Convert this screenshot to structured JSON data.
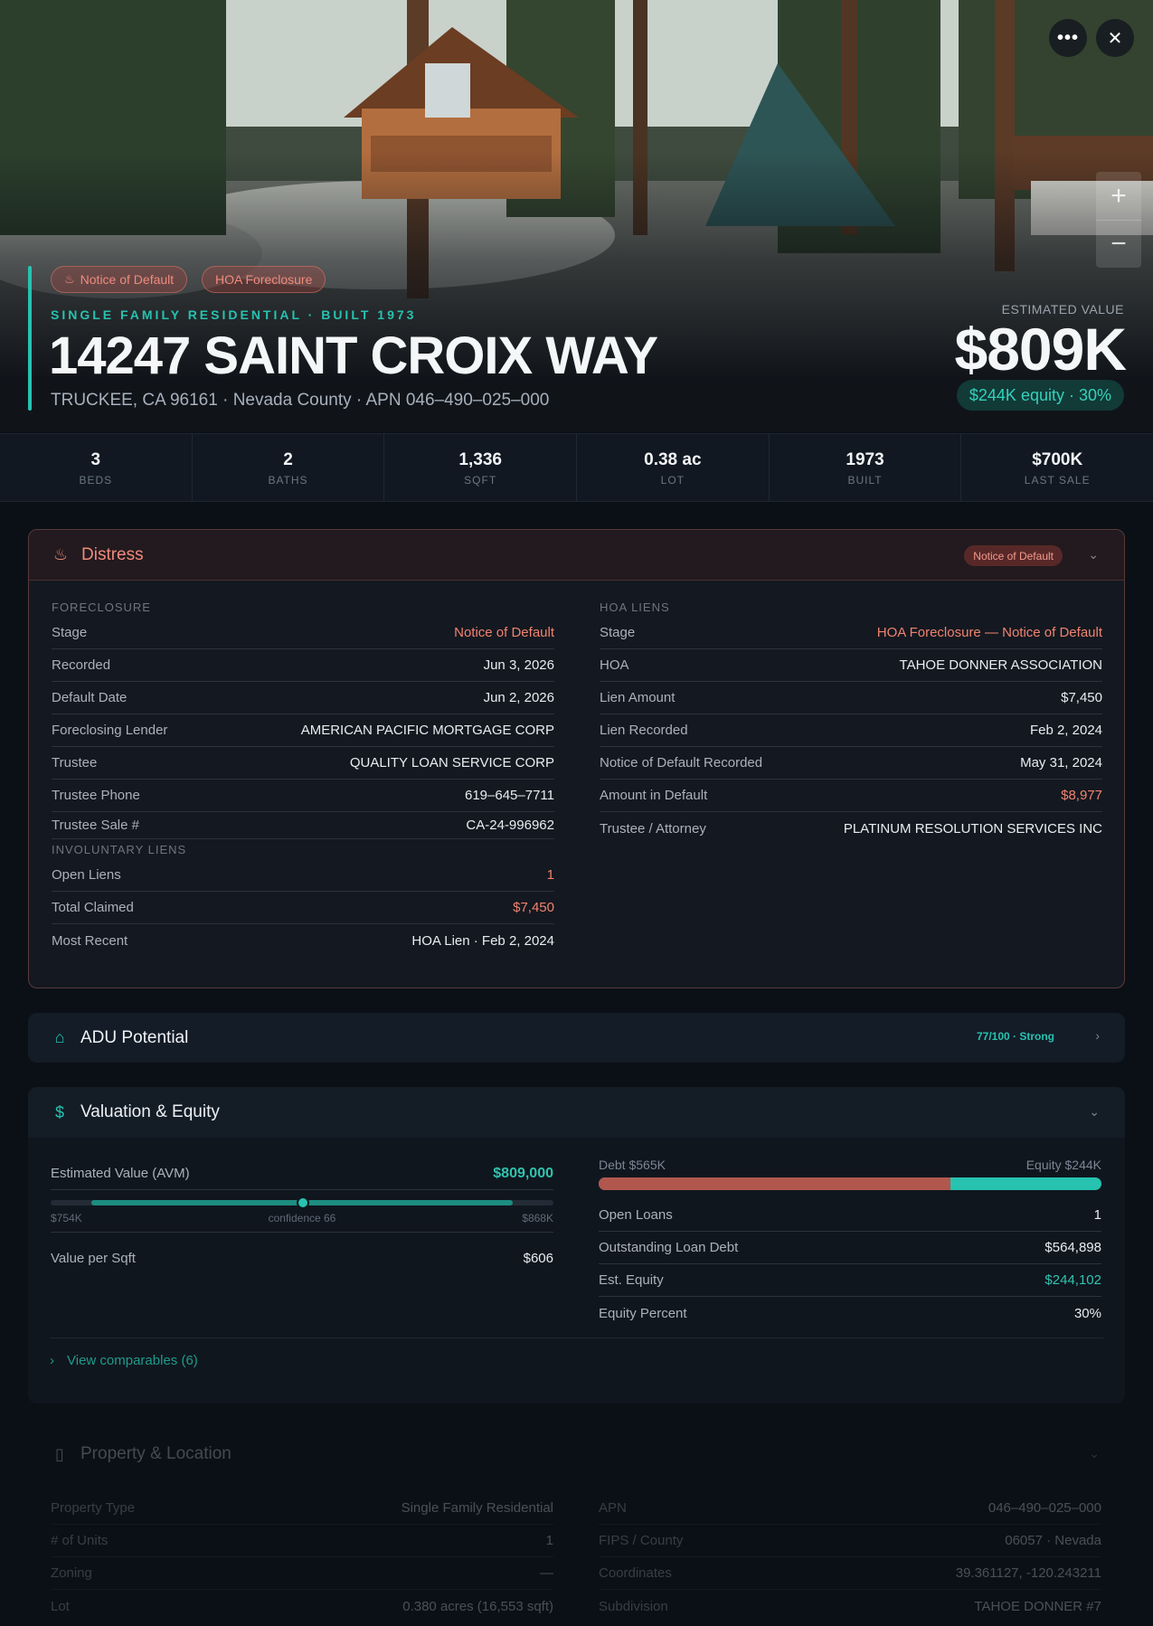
{
  "hero": {
    "badges": [
      "Notice of Default",
      "HOA Foreclosure"
    ],
    "subtitle": "SINGLE FAMILY RESIDENTIAL · BUILT 1973",
    "address": "14247 SAINT CROIX WAY",
    "location": "TRUCKEE, CA 96161 · Nevada County · APN 046–490–025–000",
    "estimated_value_label": "ESTIMATED VALUE",
    "estimated_value": "$809K",
    "equity_pill": "$244K equity · 30%",
    "more_icon": "more-icon",
    "close_icon": "close-icon",
    "zoom_in": "+",
    "zoom_out": "−"
  },
  "stats": [
    {
      "value": "3",
      "label": "BEDS"
    },
    {
      "value": "2",
      "label": "BATHS"
    },
    {
      "value": "1,336",
      "label": "SQFT"
    },
    {
      "value": "0.38 ac",
      "label": "LOT"
    },
    {
      "value": "1973",
      "label": "BUILT"
    },
    {
      "value": "$700K",
      "label": "LAST SALE"
    }
  ],
  "distress": {
    "title": "Distress",
    "badge": "Notice of Default",
    "foreclosure_label": "FORECLOSURE",
    "foreclosure": [
      {
        "k": "Stage",
        "v": "Notice of Default"
      },
      {
        "k": "Recorded",
        "v": "Jun 3, 2026"
      },
      {
        "k": "Default Date",
        "v": "Jun 2, 2026"
      },
      {
        "k": "Foreclosing Lender",
        "v": "AMERICAN PACIFIC MORTGAGE CORP"
      },
      {
        "k": "Trustee",
        "v": "QUALITY LOAN SERVICE CORP"
      },
      {
        "k": "Trustee Phone",
        "v": "619–645–7711"
      },
      {
        "k": "Trustee Sale #",
        "v": "CA-24-996962"
      }
    ],
    "involuntary_label": "INVOLUNTARY LIENS",
    "involuntary": [
      {
        "k": "Open Liens",
        "v": "1"
      },
      {
        "k": "Total Claimed",
        "v": "$7,450"
      },
      {
        "k": "Most Recent",
        "v": "HOA Lien · Feb 2, 2024"
      }
    ],
    "hoa_label": "HOA LIENS",
    "hoa": [
      {
        "k": "Stage",
        "v": "HOA Foreclosure — Notice of Default"
      },
      {
        "k": "HOA",
        "v": "TAHOE DONNER ASSOCIATION"
      },
      {
        "k": "Lien Amount",
        "v": "$7,450"
      },
      {
        "k": "Lien Recorded",
        "v": "Feb 2, 2024"
      },
      {
        "k": "Notice of Default Recorded",
        "v": "May 31, 2024"
      },
      {
        "k": "Amount in Default",
        "v": "$8,977"
      },
      {
        "k": "Trustee / Attorney",
        "v": "PLATINUM RESOLUTION SERVICES INC"
      }
    ]
  },
  "adu": {
    "title": "ADU Potential",
    "score": "77/100 · Strong"
  },
  "valuation": {
    "title": "Valuation & Equity",
    "avm_label": "Estimated Value (AVM)",
    "avm_value": "$809,000",
    "range_low": "$754K",
    "range_mid": "confidence 66",
    "range_high": "$868K",
    "confidence": 66,
    "value_per_sqft_label": "Value per Sqft",
    "value_per_sqft": "$606",
    "debt_label": "Debt $565K",
    "equity_label": "Equity $244K",
    "debt_fraction": 0.7,
    "rows": [
      {
        "k": "Open Loans",
        "v": "1"
      },
      {
        "k": "Outstanding Loan Debt",
        "v": "$564,898"
      },
      {
        "k": "Est. Equity",
        "v": "$244,102"
      },
      {
        "k": "Equity Percent",
        "v": "30%"
      }
    ],
    "comparables": "View comparables (6)"
  },
  "property": {
    "title": "Property & Location",
    "left": [
      {
        "k": "Property Type",
        "v": "Single Family Residential"
      },
      {
        "k": "# of Units",
        "v": "1"
      },
      {
        "k": "Zoning",
        "v": "—"
      },
      {
        "k": "Lot",
        "v": "0.380 acres (16,553 sqft)"
      }
    ],
    "right": [
      {
        "k": "APN",
        "v": "046–490–025–000"
      },
      {
        "k": "FIPS / County",
        "v": "06057 · Nevada"
      },
      {
        "k": "Coordinates",
        "v": "39.361127, -120.243211"
      },
      {
        "k": "Subdivision",
        "v": "TAHOE DONNER #7"
      }
    ]
  }
}
